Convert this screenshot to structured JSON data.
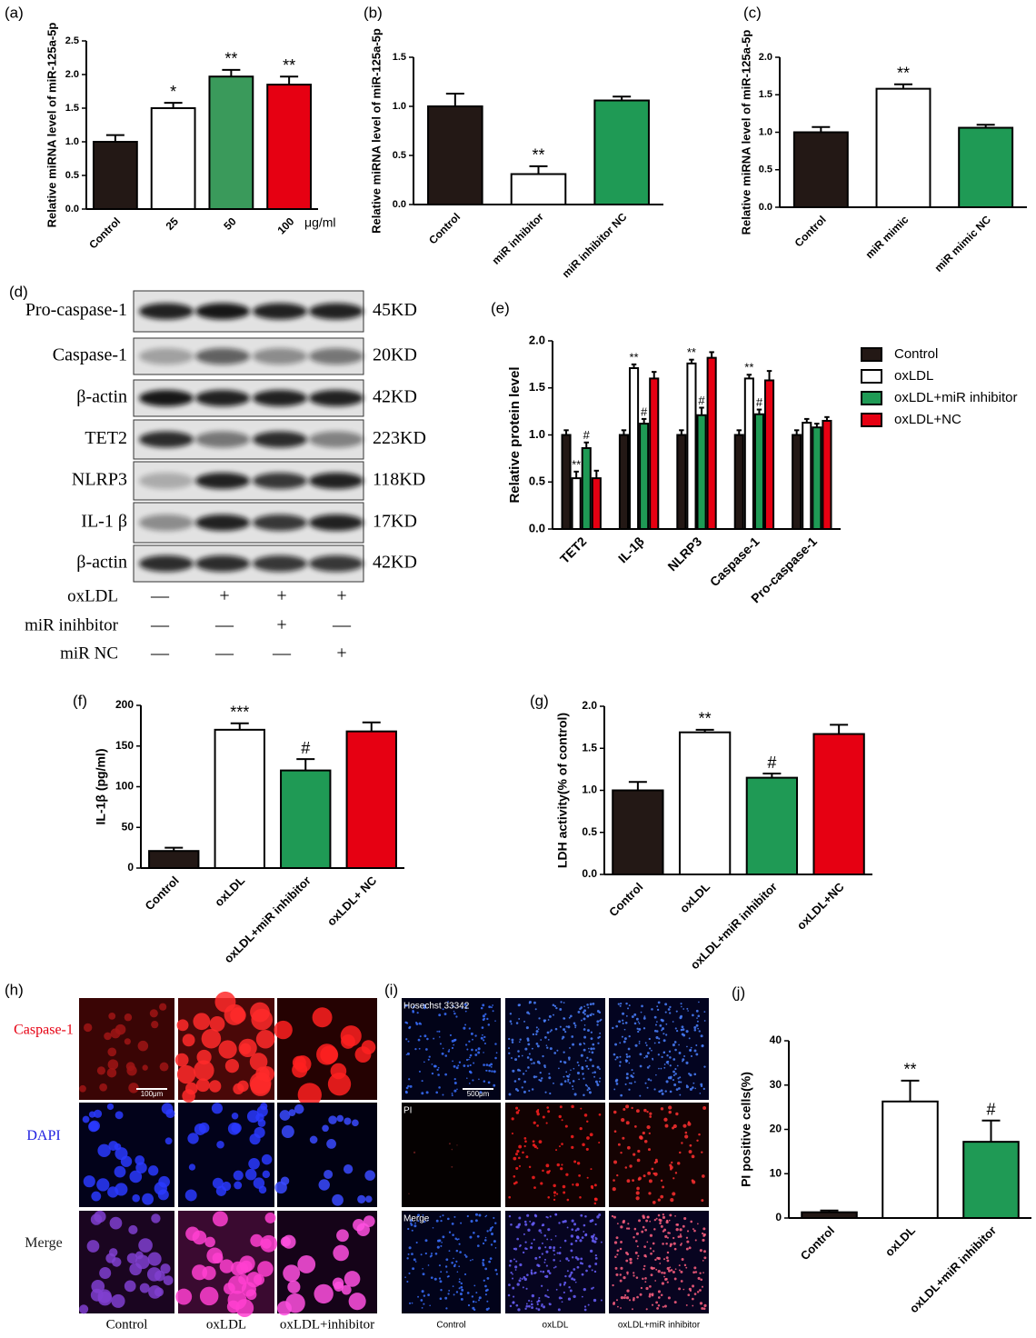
{
  "chart_data": [
    {
      "type": "bar",
      "panel": "(a)",
      "ylabel": "Relative miRNA level of miR-125a-5p",
      "x_unit": "μg/ml",
      "categories": [
        "Control",
        "25",
        "50",
        "100"
      ],
      "values": [
        1.0,
        1.5,
        1.97,
        1.85
      ],
      "errors": [
        0.1,
        0.08,
        0.1,
        0.12
      ],
      "colors": [
        "#231815",
        "#ffffff",
        "#3a9a5b",
        "#e60012"
      ],
      "ylim": [
        0,
        2.5
      ],
      "yticks": [
        {
          "value": 0,
          "label": "0.0"
        },
        0.5,
        {
          "value": 1,
          "label": "1.0"
        },
        1.5,
        {
          "value": 2,
          "label": "2.0"
        },
        2.5
      ],
      "annotations": [
        {
          "index": 1,
          "text": "*"
        },
        {
          "index": 2,
          "text": "**"
        },
        {
          "index": 3,
          "text": "**"
        }
      ]
    },
    {
      "type": "bar",
      "panel": "(b)",
      "ylabel": "Relative miRNA level of miR-125a-5p",
      "categories": [
        "Control",
        "miR inhibitor",
        "miR inhibitor NC"
      ],
      "values": [
        1.0,
        0.31,
        1.06
      ],
      "errors": [
        0.13,
        0.08,
        0.04
      ],
      "colors": [
        "#231815",
        "#ffffff",
        "#1f9a55"
      ],
      "ylim": [
        0,
        1.5
      ],
      "yticks": [
        {
          "value": 0,
          "label": "0.0"
        },
        0.5,
        {
          "value": 1,
          "label": "1.0"
        },
        1.5
      ],
      "annotations": [
        {
          "index": 1,
          "text": "**"
        }
      ]
    },
    {
      "type": "bar",
      "panel": "(c)",
      "ylabel": "Relative miRNA level of miR-125a-5p",
      "categories": [
        "Control",
        "miR mimic",
        "miR mimic NC"
      ],
      "values": [
        1.0,
        1.58,
        1.06
      ],
      "errors": [
        0.07,
        0.06,
        0.04
      ],
      "colors": [
        "#231815",
        "#ffffff",
        "#1f9a55"
      ],
      "ylim": [
        0,
        2
      ],
      "yticks": [
        {
          "value": 0,
          "label": "0.0"
        },
        0.5,
        {
          "value": 1,
          "label": "1.0"
        },
        1.5,
        {
          "value": 2,
          "label": "2.0"
        }
      ],
      "annotations": [
        {
          "index": 1,
          "text": "**"
        }
      ]
    },
    {
      "type": "bar",
      "panel": "(e)",
      "ylabel": "Relative protein level",
      "categories": [
        "TET2",
        "IL-1β",
        "NLRP3",
        "Caspase-1",
        "Pro-caspase-1"
      ],
      "series": [
        {
          "name": "Control",
          "color": "#231815",
          "values": [
            1.0,
            1.0,
            1.0,
            1.0,
            1.0
          ],
          "errors": [
            0.05,
            0.05,
            0.05,
            0.05,
            0.05
          ]
        },
        {
          "name": "oxLDL",
          "color": "#ffffff",
          "values": [
            0.54,
            1.71,
            1.76,
            1.6,
            1.13
          ],
          "errors": [
            0.07,
            0.04,
            0.04,
            0.04,
            0.04
          ]
        },
        {
          "name": "oxLDL+miR inhibitor",
          "color": "#1f9a55",
          "values": [
            0.86,
            1.12,
            1.21,
            1.22,
            1.08
          ],
          "errors": [
            0.06,
            0.05,
            0.08,
            0.05,
            0.04
          ]
        },
        {
          "name": "oxLDL+NC",
          "color": "#e60012",
          "values": [
            0.54,
            1.6,
            1.82,
            1.58,
            1.15
          ],
          "errors": [
            0.08,
            0.07,
            0.06,
            0.1,
            0.04
          ]
        }
      ],
      "ylim": [
        0,
        2
      ],
      "yticks": [
        {
          "value": 0,
          "label": "0.0"
        },
        0.5,
        {
          "value": 1,
          "label": "1.0"
        },
        1.5,
        {
          "value": 2,
          "label": "2.0"
        }
      ],
      "annotations": [
        {
          "series": 1,
          "index": 0,
          "text": "**"
        },
        {
          "series": 2,
          "index": 0,
          "text": "#"
        },
        {
          "series": 1,
          "index": 1,
          "text": "**"
        },
        {
          "series": 2,
          "index": 1,
          "text": "#"
        },
        {
          "series": 1,
          "index": 2,
          "text": "**"
        },
        {
          "series": 2,
          "index": 2,
          "text": "#"
        },
        {
          "series": 1,
          "index": 3,
          "text": "**"
        },
        {
          "series": 2,
          "index": 3,
          "text": "#"
        }
      ]
    },
    {
      "type": "bar",
      "panel": "(f)",
      "ylabel": "IL-1β  (pg/ml)",
      "categories": [
        "Control",
        "oxLDL",
        "oxLDL+miR inhibitor",
        "oxLDL+ NC"
      ],
      "values": [
        21,
        170,
        120,
        168
      ],
      "errors": [
        4,
        8,
        14,
        11
      ],
      "colors": [
        "#231815",
        "#ffffff",
        "#1f9a55",
        "#e60012"
      ],
      "ylim": [
        0,
        200
      ],
      "yticks": [
        0,
        50,
        100,
        150,
        200
      ],
      "annotations": [
        {
          "index": 1,
          "text": "***"
        },
        {
          "index": 2,
          "text": "#"
        }
      ]
    },
    {
      "type": "bar",
      "panel": "(g)",
      "ylabel": "LDH activity(% of control)",
      "categories": [
        "Control",
        "oxLDL",
        "oxLDL+miR inhibitor",
        "oxLDL+NC"
      ],
      "values": [
        1.0,
        1.69,
        1.15,
        1.67
      ],
      "errors": [
        0.1,
        0.03,
        0.05,
        0.11
      ],
      "colors": [
        "#231815",
        "#ffffff",
        "#1f9a55",
        "#e60012"
      ],
      "ylim": [
        0,
        2
      ],
      "yticks": [
        {
          "value": 0,
          "label": "0.0"
        },
        0.5,
        {
          "value": 1,
          "label": "1.0"
        },
        1.5,
        {
          "value": 2,
          "label": "2.0"
        }
      ],
      "annotations": [
        {
          "index": 1,
          "text": "**"
        },
        {
          "index": 2,
          "text": "#"
        }
      ]
    },
    {
      "type": "bar",
      "panel": "(j)",
      "ylabel": "PI positive cells(%)",
      "categories": [
        "Control",
        "oxLDL",
        "oxLDL+miR inhibitor"
      ],
      "values": [
        1.3,
        26.3,
        17.2
      ],
      "errors": [
        0.4,
        4.7,
        4.8
      ],
      "colors": [
        "#231815",
        "#ffffff",
        "#1f9a55"
      ],
      "ylim": [
        0,
        40
      ],
      "yticks": [
        0,
        10,
        20,
        30,
        40
      ],
      "annotations": [
        {
          "index": 1,
          "text": "**"
        },
        {
          "index": 2,
          "text": "#"
        }
      ]
    }
  ],
  "blot": {
    "panel": "(d)",
    "rows": [
      {
        "label": "Pro-caspase-1",
        "size": "45KD"
      },
      {
        "label": "Caspase-1",
        "size": "20KD"
      },
      {
        "label": "β-actin",
        "size": "42KD"
      },
      {
        "label": "TET2",
        "size": "223KD"
      },
      {
        "label": "NLRP3",
        "size": "118KD"
      },
      {
        "label": "IL-1 β",
        "size": "17KD"
      },
      {
        "label": "β-actin",
        "size": "42KD"
      }
    ],
    "treatments": [
      {
        "label": "oxLDL",
        "marks": [
          "—",
          "+",
          "+",
          "+"
        ]
      },
      {
        "label": "miR inihbitor",
        "marks": [
          "—",
          "—",
          "+",
          "—"
        ]
      },
      {
        "label": "miR NC",
        "marks": [
          "—",
          "—",
          "—",
          "+"
        ]
      }
    ]
  },
  "images_h": {
    "panel": "(h)",
    "rows": [
      "Caspase-1",
      "DAPI",
      "Merge"
    ],
    "columns": [
      "Control",
      "oxLDL",
      "oxLDL+inhibitor"
    ],
    "scale": "100μm"
  },
  "images_i": {
    "panel": "(i)",
    "rows": [
      "Hosechst 33342",
      "PI",
      "Merge"
    ],
    "columns": [
      "Control",
      "oxLDL",
      "oxLDL+miR inhibitor"
    ],
    "scale": "500μm"
  }
}
